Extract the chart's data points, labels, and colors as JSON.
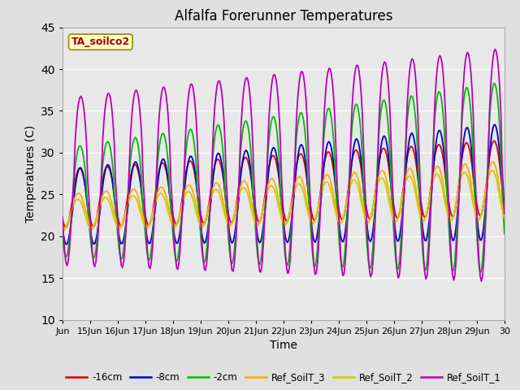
{
  "title": "Alfalfa Forerunner Temperatures",
  "xlabel": "Time",
  "ylabel": "Temperatures (C)",
  "ylim": [
    10,
    45
  ],
  "annotation_text": "TA_soilco2",
  "xtick_labels": [
    "Jun",
    "15Jun",
    "16Jun",
    "17Jun",
    "18Jun",
    "19Jun",
    "20Jun",
    "21Jun",
    "22Jun",
    "23Jun",
    "24Jun",
    "25Jun",
    "26Jun",
    "27Jun",
    "28Jun",
    "29Jun",
    "30"
  ],
  "xtick_positions": [
    0,
    1,
    2,
    3,
    4,
    5,
    6,
    7,
    8,
    9,
    10,
    11,
    12,
    13,
    14,
    15,
    16
  ],
  "ytick_positions": [
    10,
    15,
    20,
    25,
    30,
    35,
    40,
    45
  ],
  "colors": {
    "red": "#dd0000",
    "blue": "#0000cc",
    "green": "#00bb00",
    "orange": "#ffaa00",
    "yellow": "#cccc00",
    "purple": "#bb00bb"
  },
  "fig_bg": "#e0e0e0",
  "plot_bg": "#e8e8e8"
}
